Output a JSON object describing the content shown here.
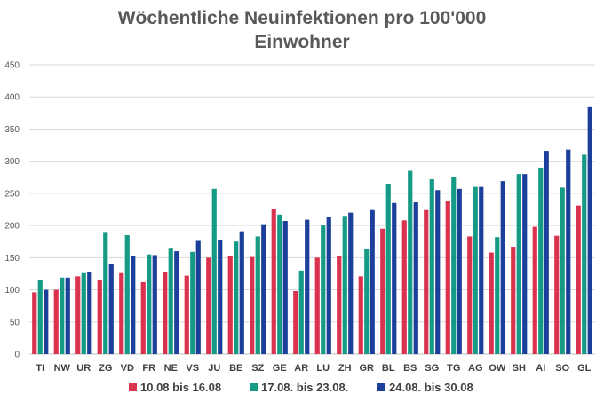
{
  "chart_data": {
    "type": "bar",
    "title_lines": [
      "Wöchentliche Neuinfektionen pro 100'000",
      "Einwohner"
    ],
    "xlabel": "",
    "ylabel": "",
    "ylim": [
      0,
      450
    ],
    "yticks": [
      0,
      50,
      100,
      150,
      200,
      250,
      300,
      350,
      400,
      450
    ],
    "grid": true,
    "legend_position": "bottom",
    "categories": [
      "TI",
      "NW",
      "UR",
      "ZG",
      "VD",
      "FR",
      "NE",
      "VS",
      "JU",
      "BE",
      "SZ",
      "GE",
      "AR",
      "LU",
      "ZH",
      "GR",
      "BL",
      "BS",
      "SG",
      "TG",
      "AG",
      "OW",
      "SH",
      "AI",
      "SO",
      "GL"
    ],
    "series": [
      {
        "name": "10.08 bis 16.08",
        "color": "#d9334f",
        "values": [
          96,
          100,
          121,
          115,
          126,
          112,
          127,
          122,
          150,
          153,
          151,
          226,
          98,
          150,
          152,
          121,
          195,
          208,
          224,
          238,
          183,
          158,
          167,
          198,
          184,
          231
        ]
      },
      {
        "name": "17.08. bis 23.08.",
        "color": "#159a86",
        "values": [
          115,
          119,
          126,
          190,
          185,
          155,
          164,
          159,
          257,
          175,
          183,
          217,
          130,
          200,
          215,
          163,
          265,
          285,
          272,
          275,
          260,
          182,
          280,
          290,
          259,
          310
        ]
      },
      {
        "name": "24.08. bis 30.08",
        "color": "#1b3f9a",
        "values": [
          100,
          119,
          128,
          140,
          153,
          154,
          160,
          176,
          177,
          191,
          202,
          207,
          209,
          213,
          220,
          224,
          235,
          236,
          255,
          257,
          260,
          269,
          280,
          316,
          318,
          384
        ]
      }
    ]
  }
}
